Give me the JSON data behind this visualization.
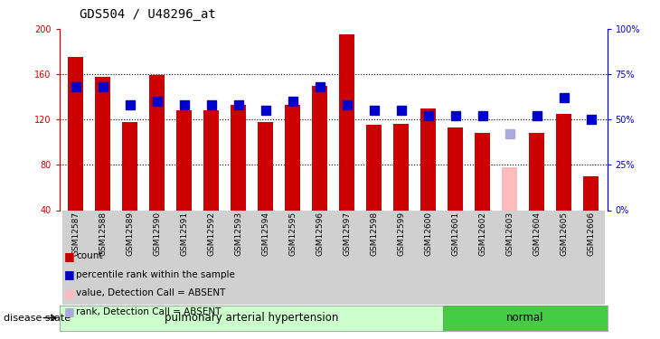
{
  "title": "GDS504 / U48296_at",
  "samples": [
    "GSM12587",
    "GSM12588",
    "GSM12589",
    "GSM12590",
    "GSM12591",
    "GSM12592",
    "GSM12593",
    "GSM12594",
    "GSM12595",
    "GSM12596",
    "GSM12597",
    "GSM12598",
    "GSM12599",
    "GSM12600",
    "GSM12601",
    "GSM12602",
    "GSM12603",
    "GSM12604",
    "GSM12605",
    "GSM12606"
  ],
  "bar_values": [
    175,
    158,
    118,
    159,
    128,
    128,
    133,
    118,
    133,
    150,
    195,
    115,
    116,
    130,
    113,
    108,
    78,
    108,
    125,
    70
  ],
  "bar_colors": [
    "#cc0000",
    "#cc0000",
    "#cc0000",
    "#cc0000",
    "#cc0000",
    "#cc0000",
    "#cc0000",
    "#cc0000",
    "#cc0000",
    "#cc0000",
    "#cc0000",
    "#cc0000",
    "#cc0000",
    "#cc0000",
    "#cc0000",
    "#cc0000",
    "#ffbbbb",
    "#cc0000",
    "#cc0000",
    "#cc0000"
  ],
  "rank_values_pct": [
    68,
    68,
    58,
    60,
    58,
    58,
    58,
    55,
    60,
    68,
    58,
    55,
    55,
    52,
    52,
    52,
    42,
    52,
    62,
    50
  ],
  "rank_colors": [
    "#0000cc",
    "#0000cc",
    "#0000cc",
    "#0000cc",
    "#0000cc",
    "#0000cc",
    "#0000cc",
    "#0000cc",
    "#0000cc",
    "#0000cc",
    "#0000cc",
    "#0000cc",
    "#0000cc",
    "#0000cc",
    "#0000cc",
    "#0000cc",
    "#aaaadd",
    "#0000cc",
    "#0000cc",
    "#0000cc"
  ],
  "ylim_left": [
    40,
    200
  ],
  "ylim_right": [
    0,
    100
  ],
  "yticks_left": [
    40,
    80,
    120,
    160,
    200
  ],
  "yticks_right": [
    0,
    25,
    50,
    75,
    100
  ],
  "group1_count": 14,
  "group1_label": "pulmonary arterial hypertension",
  "group2_label": "normal",
  "group1_color": "#ccffcc",
  "group2_color": "#44cc44",
  "disease_state_label": "disease state",
  "legend_items": [
    {
      "label": "count",
      "color": "#cc0000"
    },
    {
      "label": "percentile rank within the sample",
      "color": "#0000cc"
    },
    {
      "label": "value, Detection Call = ABSENT",
      "color": "#ffbbbb"
    },
    {
      "label": "rank, Detection Call = ABSENT",
      "color": "#aaaadd"
    }
  ],
  "bar_width": 0.55,
  "rank_marker_size": 7,
  "left_axis_color": "#cc0000",
  "right_axis_color": "#0000cc"
}
